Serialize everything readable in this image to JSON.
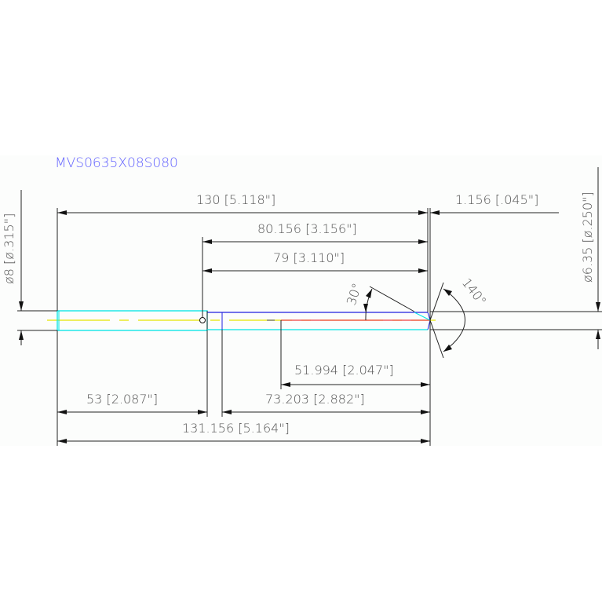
{
  "title": "MVS0635X08S080",
  "dimensions": {
    "overall_length": "130 [5.118\"]",
    "tip_offset": "1.156 [.045\"]",
    "flute_to_tip": "80.156 [3.156\"]",
    "flute_length": "79 [3.110\"]",
    "shank_diameter": "ø8 [ø.315\"]",
    "cutting_diameter": "ø6.35 [ø.250\"]",
    "helix_angle": "30°",
    "point_angle": "140°",
    "red_section": "51.994 [2.047\"]",
    "shank_length": "53 [2.087\"]",
    "body_length": "73.203 [2.882\"]",
    "total_length": "131.156 [5.164\"]"
  },
  "colors": {
    "title": "#6464ff",
    "shank_outline": "#00e5e5",
    "centerline": "#e6e600",
    "flute_edge": "#2020e0",
    "red_line": "#f04040",
    "dimension": "#222222"
  }
}
